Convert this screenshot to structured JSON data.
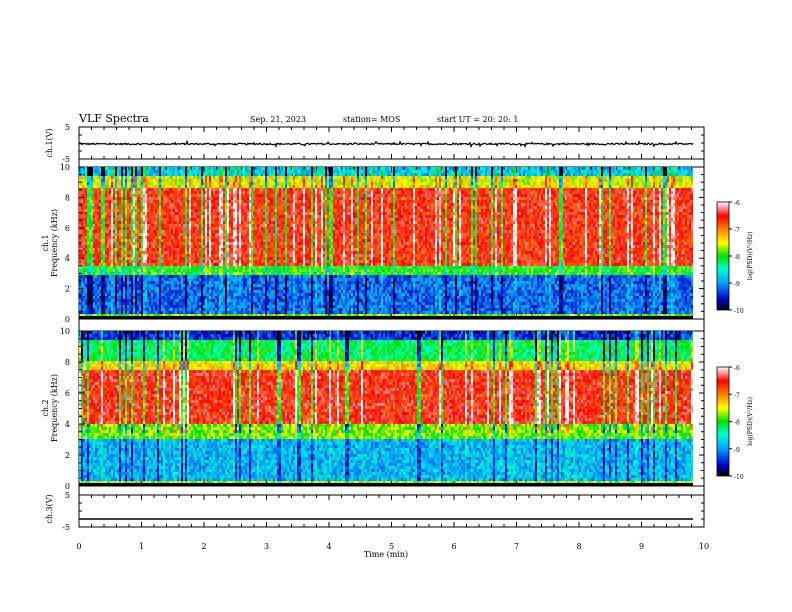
{
  "header": {
    "title": "VLF Spectra",
    "date": "Sep. 21, 2023",
    "station": "station= MOS",
    "start": "start  UT =   20: 20: 1"
  },
  "colorbar": {
    "label": "log(PSD)(V²/Hz)",
    "ticks": [
      "-6",
      "-7",
      "-8",
      "-9",
      "-10"
    ]
  },
  "chart_data": [
    {
      "type": "line",
      "panel": "waveform-ch1",
      "ylabel": "ch.1(V)",
      "ylim": [
        -5,
        5
      ],
      "yticks": [
        "5",
        "-5"
      ],
      "series": [
        {
          "values_description_level": -0.3
        }
      ]
    },
    {
      "type": "heatmap",
      "panel": "spectrogram-ch1",
      "ylabel": "ch.1\nFrequency (kHz)",
      "ylim": [
        0,
        10
      ],
      "yticks": [
        "0",
        "2",
        "4",
        "6",
        "8",
        "10"
      ],
      "colorscale": [
        "#000000",
        "#0000c8",
        "#00a0ff",
        "#00ffcc",
        "#00e000",
        "#ffff00",
        "#ff7f00",
        "#ff0000",
        "#ffffff"
      ],
      "zlim": [
        -10,
        -6
      ]
    },
    {
      "type": "heatmap",
      "panel": "spectrogram-ch2",
      "ylabel": "ch.2\nFrequency (kHz)",
      "ylim": [
        0,
        10
      ],
      "yticks": [
        "0",
        "2",
        "4",
        "6",
        "8",
        "10"
      ],
      "zlim": [
        -10,
        -6
      ]
    },
    {
      "type": "line",
      "panel": "waveform-ch3",
      "ylabel": "ch.3(V)",
      "ylim": [
        -5,
        5
      ],
      "yticks": [
        "5",
        "-5"
      ],
      "xlabel": "Time  (min)",
      "xlim": [
        0,
        10
      ],
      "xticks": [
        "0",
        "1",
        "2",
        "3",
        "4",
        "5",
        "6",
        "7",
        "8",
        "9",
        "10"
      ],
      "series": [
        {
          "level": -2.5
        }
      ]
    }
  ]
}
